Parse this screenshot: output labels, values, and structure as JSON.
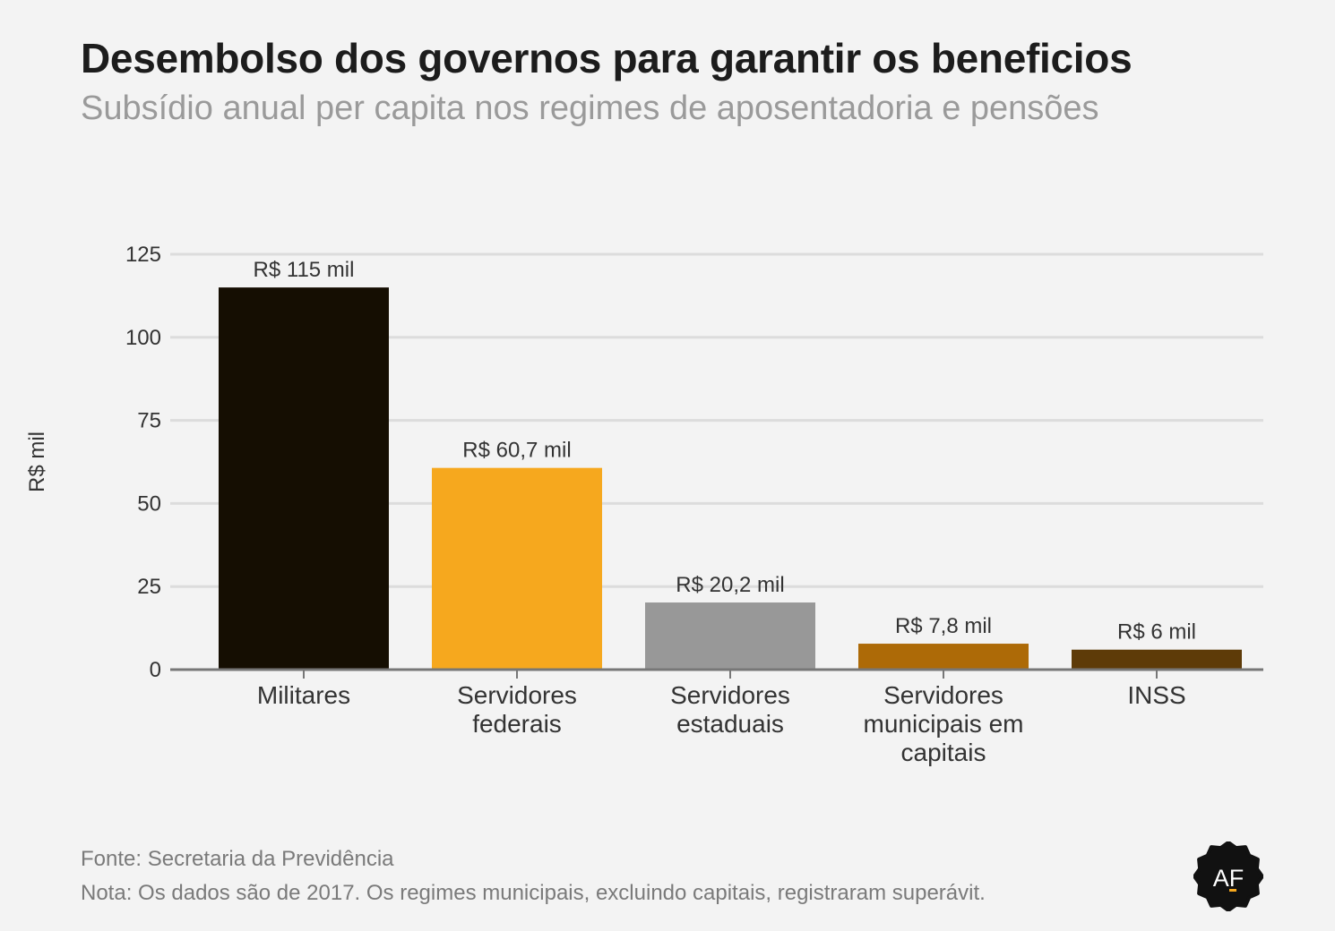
{
  "title": "Desembolso dos governos para garantir os beneficios",
  "subtitle": "Subsídio anual per capita nos regimes de aposentadoria e pensões",
  "chart_data": {
    "type": "bar",
    "categories": [
      [
        "Militares"
      ],
      [
        "Servidores",
        "federais"
      ],
      [
        "Servidores",
        "estaduais"
      ],
      [
        "Servidores",
        "municipais em",
        "capitais"
      ],
      [
        "INSS"
      ]
    ],
    "values": [
      115,
      60.7,
      20.2,
      7.8,
      6
    ],
    "data_labels": [
      "R$ 115 mil",
      "R$ 60,7 mil",
      "R$ 20,2 mil",
      "R$ 7,8 mil",
      "R$ 6 mil"
    ],
    "colors": [
      "#150e02",
      "#f6a81e",
      "#989898",
      "#ad6a07",
      "#5e3b08"
    ],
    "ylabel": "R$ mil",
    "ylim": [
      0,
      125
    ],
    "yticks": [
      0,
      25,
      50,
      75,
      100,
      125
    ],
    "grid": true,
    "grid_color": "#dcdcdc",
    "axis_color": "#777777"
  },
  "footer": {
    "source": "Fonte: Secretaria da Previdência",
    "note": "Nota: Os dados são de 2017. Os regimes municipais, excluindo capitais, registraram superávit."
  },
  "logo": {
    "text": "AF",
    "icon": "af-badge-icon",
    "color": "#111111"
  }
}
